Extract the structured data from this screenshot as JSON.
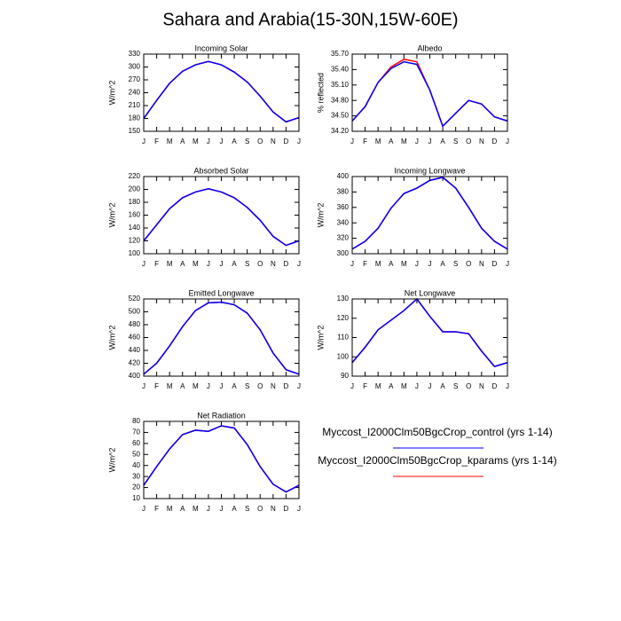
{
  "title": "Sahara and Arabia(15-30N,15W-60E)",
  "chart_data": [
    {
      "type": "line",
      "title": "Incoming Solar",
      "ylabel": "W/m^2",
      "categories": [
        "J",
        "F",
        "M",
        "A",
        "M",
        "J",
        "J",
        "A",
        "S",
        "O",
        "N",
        "D",
        "J"
      ],
      "ylim": [
        150,
        330
      ],
      "yticks": [
        150,
        180,
        210,
        240,
        270,
        300,
        330
      ],
      "series": [
        {
          "name": "Myccost_I2000Clm50BgcCrop_control (yrs 1-14)",
          "color": "#0000ff",
          "values": [
            180,
            222,
            262,
            290,
            305,
            313,
            305,
            288,
            265,
            232,
            195,
            172,
            182
          ]
        },
        {
          "name": "Myccost_I2000Clm50BgcCrop_kparams (yrs 1-14)",
          "color": "#ff0000",
          "values": [
            180,
            222,
            262,
            290,
            305,
            313,
            305,
            288,
            265,
            232,
            195,
            172,
            182
          ]
        }
      ]
    },
    {
      "type": "line",
      "title": "Albedo",
      "ylabel": "% reflected",
      "categories": [
        "J",
        "F",
        "M",
        "A",
        "M",
        "J",
        "J",
        "A",
        "S",
        "O",
        "N",
        "D",
        "J"
      ],
      "ylim": [
        34.2,
        35.7
      ],
      "yticks": [
        {
          "value": 34.2,
          "label": "34.20"
        },
        {
          "value": 34.5,
          "label": "34.50"
        },
        {
          "value": 34.8,
          "label": "34.80"
        },
        {
          "value": 35.1,
          "label": "35.10"
        },
        {
          "value": 35.4,
          "label": "35.40"
        },
        {
          "value": 35.7,
          "label": "35.70"
        }
      ],
      "series": [
        {
          "color": "#0000ff",
          "values": [
            34.4,
            34.68,
            35.15,
            35.42,
            35.55,
            35.5,
            35.0,
            34.3,
            34.55,
            34.8,
            34.73,
            34.48,
            34.4
          ]
        },
        {
          "color": "#ff0000",
          "values": [
            34.4,
            34.68,
            35.15,
            35.45,
            35.6,
            35.55,
            35.0,
            34.3,
            34.55,
            34.8,
            34.73,
            34.48,
            34.4
          ]
        }
      ]
    },
    {
      "type": "line",
      "title": "Absorbed Solar",
      "ylabel": "W/m^2",
      "categories": [
        "J",
        "F",
        "M",
        "A",
        "M",
        "J",
        "J",
        "A",
        "S",
        "O",
        "N",
        "D",
        "J"
      ],
      "ylim": [
        100,
        220
      ],
      "yticks": [
        100,
        120,
        140,
        160,
        180,
        200,
        220
      ],
      "series": [
        {
          "color": "#0000ff",
          "values": [
            120,
            145,
            170,
            187,
            196,
            201,
            196,
            187,
            172,
            152,
            127,
            113,
            120
          ]
        },
        {
          "color": "#ff0000",
          "values": [
            120,
            145,
            170,
            187,
            196,
            201,
            196,
            187,
            172,
            152,
            127,
            113,
            120
          ]
        }
      ]
    },
    {
      "type": "line",
      "title": "Incoming Longwave",
      "ylabel": "W/m^2",
      "categories": [
        "J",
        "F",
        "M",
        "A",
        "M",
        "J",
        "J",
        "A",
        "S",
        "O",
        "N",
        "D",
        "J"
      ],
      "ylim": [
        300,
        400
      ],
      "yticks": [
        300,
        320,
        340,
        360,
        380,
        400
      ],
      "series": [
        {
          "color": "#0000ff",
          "values": [
            306,
            316,
            333,
            359,
            378,
            385,
            395,
            399,
            385,
            360,
            333,
            316,
            306
          ]
        },
        {
          "color": "#ff0000",
          "values": [
            306,
            316,
            333,
            359,
            378,
            385,
            395,
            399,
            385,
            360,
            333,
            316,
            306
          ]
        }
      ]
    },
    {
      "type": "line",
      "title": "Emitted Longwave",
      "ylabel": "W/m^2",
      "categories": [
        "J",
        "F",
        "M",
        "A",
        "M",
        "J",
        "J",
        "A",
        "S",
        "O",
        "N",
        "D",
        "J"
      ],
      "ylim": [
        400,
        520
      ],
      "yticks": [
        400,
        420,
        440,
        460,
        480,
        500,
        520
      ],
      "series": [
        {
          "color": "#0000ff",
          "values": [
            403,
            420,
            447,
            477,
            502,
            514,
            515,
            511,
            498,
            472,
            436,
            410,
            403
          ]
        },
        {
          "color": "#ff0000",
          "values": [
            403,
            420,
            447,
            477,
            502,
            514,
            515,
            511,
            498,
            472,
            436,
            410,
            403
          ]
        }
      ]
    },
    {
      "type": "line",
      "title": "Net Longwave",
      "ylabel": "W/m^2",
      "categories": [
        "J",
        "F",
        "M",
        "A",
        "M",
        "J",
        "J",
        "A",
        "S",
        "O",
        "N",
        "D",
        "J"
      ],
      "ylim": [
        90,
        130
      ],
      "yticks": [
        90,
        100,
        110,
        120,
        130
      ],
      "series": [
        {
          "color": "#0000ff",
          "values": [
            97,
            105,
            114,
            119,
            124,
            130,
            121,
            113,
            113,
            112,
            103,
            95,
            97
          ]
        },
        {
          "color": "#ff0000",
          "values": [
            97,
            105,
            114,
            119,
            124,
            130,
            121,
            113,
            113,
            112,
            103,
            95,
            97
          ]
        }
      ]
    },
    {
      "type": "line",
      "title": "Net Radiation",
      "ylabel": "W/m^2",
      "categories": [
        "J",
        "F",
        "M",
        "A",
        "M",
        "J",
        "J",
        "A",
        "S",
        "O",
        "N",
        "D",
        "J"
      ],
      "ylim": [
        10,
        80
      ],
      "yticks": [
        10,
        20,
        30,
        40,
        50,
        60,
        70,
        80
      ],
      "series": [
        {
          "color": "#0000ff",
          "values": [
            22,
            39,
            55,
            68,
            72,
            71,
            76,
            74,
            59,
            39,
            23,
            16,
            22
          ]
        },
        {
          "color": "#ff0000",
          "values": [
            22,
            39,
            55,
            68,
            72,
            71,
            76,
            74,
            59,
            39,
            23,
            16,
            22
          ]
        }
      ]
    }
  ]
}
